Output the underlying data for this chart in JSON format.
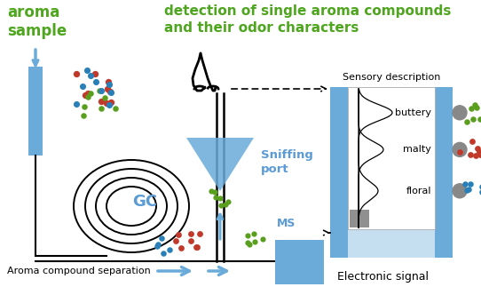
{
  "title_left": "aroma\nsample",
  "title_right": "detection of single aroma compounds\nand their odor characters",
  "title_left_color": "#4ea51e",
  "title_right_color": "#4ea51e",
  "gc_label": "GC",
  "gc_label_color": "#5b9bd5",
  "sniffing_label": "Sniffing\nport",
  "sniffing_label_color": "#5b9bd5",
  "ms_label": "MS",
  "ms_label_color": "#5b9bd5",
  "sensory_label": "Sensory description",
  "electronic_label": "Electronic signal",
  "aroma_sep_label": "Aroma compound separation",
  "odor_labels": [
    "buttery",
    "malty",
    "floral"
  ],
  "blue_color": "#6aabda",
  "light_blue": "#c5dff0",
  "gray_color": "#909090",
  "dot_colors": {
    "green": "#5a9e1e",
    "red": "#c0392b",
    "blue": "#2980b9"
  },
  "background": "#ffffff"
}
